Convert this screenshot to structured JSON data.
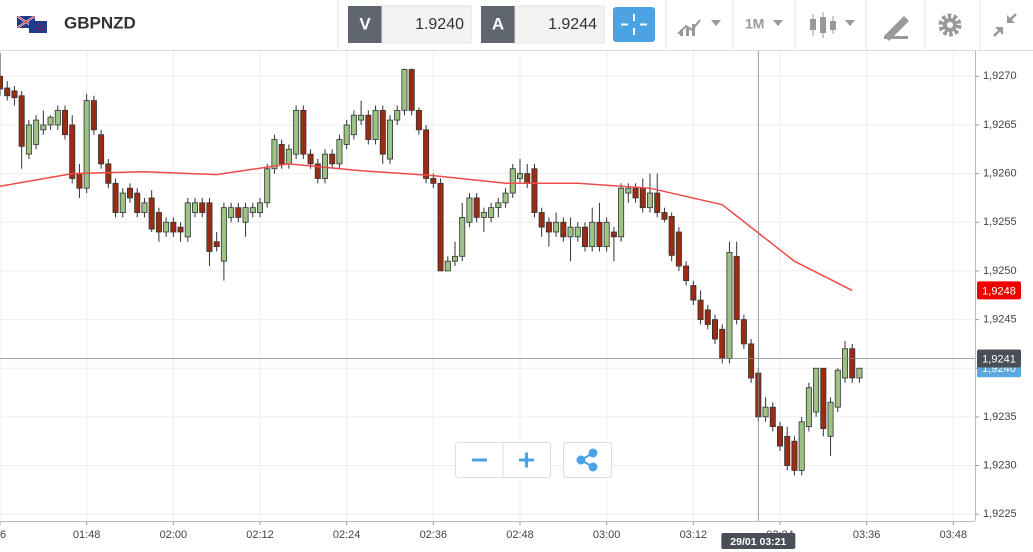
{
  "toolbar": {
    "symbol": "GBPNZD",
    "bid_label": "V",
    "bid": "1.9240",
    "ask_label": "A",
    "ask": "1.9244",
    "interval": "1M"
  },
  "chart_data": {
    "type": "candlestick",
    "x": [
      "01:36",
      "01:37",
      "01:38",
      "01:39",
      "01:40",
      "01:41",
      "01:42",
      "01:43",
      "01:44",
      "01:45",
      "01:46",
      "01:47",
      "01:48",
      "01:49",
      "01:50",
      "01:51",
      "01:52",
      "01:53",
      "01:54",
      "01:55",
      "01:56",
      "01:57",
      "01:58",
      "01:59",
      "02:00",
      "02:01",
      "02:02",
      "02:03",
      "02:04",
      "02:05",
      "02:06",
      "02:07",
      "02:08",
      "02:09",
      "02:10",
      "02:11",
      "02:12",
      "02:13",
      "02:14",
      "02:15",
      "02:16",
      "02:17",
      "02:18",
      "02:19",
      "02:20",
      "02:21",
      "02:22",
      "02:23",
      "02:24",
      "02:25",
      "02:26",
      "02:27",
      "02:28",
      "02:29",
      "02:30",
      "02:31",
      "02:32",
      "02:33",
      "02:34",
      "02:35",
      "02:36",
      "02:37",
      "02:38",
      "02:39",
      "02:40",
      "02:41",
      "02:42",
      "02:43",
      "02:44",
      "02:45",
      "02:46",
      "02:47",
      "02:48",
      "02:49",
      "02:50",
      "02:51",
      "02:52",
      "02:53",
      "02:54",
      "02:55",
      "02:56",
      "02:57",
      "02:58",
      "02:59",
      "03:00",
      "03:01",
      "03:02",
      "03:03",
      "03:04",
      "03:05",
      "03:06",
      "03:07",
      "03:08",
      "03:09",
      "03:10",
      "03:11",
      "03:12",
      "03:13",
      "03:14",
      "03:15",
      "03:16",
      "03:17",
      "03:18",
      "03:19",
      "03:20",
      "03:21",
      "03:22",
      "03:23",
      "03:24",
      "03:25",
      "03:26",
      "03:27",
      "03:28",
      "03:29",
      "03:30",
      "03:31",
      "03:32",
      "03:33",
      "03:34",
      "03:35"
    ],
    "ohlc": [
      [
        1.927,
        1.92724,
        1.9268,
        1.92687
      ],
      [
        1.92688,
        1.92695,
        1.92675,
        1.9268
      ],
      [
        1.92685,
        1.9269,
        1.9267,
        1.92678
      ],
      [
        1.9268,
        1.92685,
        1.92605,
        1.92628
      ],
      [
        1.9262,
        1.92655,
        1.92615,
        1.9265
      ],
      [
        1.9263,
        1.9266,
        1.92625,
        1.92655
      ],
      [
        1.92645,
        1.92665,
        1.9264,
        1.9265
      ],
      [
        1.9265,
        1.9266,
        1.92645,
        1.92658
      ],
      [
        1.9265,
        1.9267,
        1.92645,
        1.92665
      ],
      [
        1.92665,
        1.9267,
        1.92635,
        1.9264
      ],
      [
        1.9265,
        1.9266,
        1.9259,
        1.92595
      ],
      [
        1.926,
        1.9261,
        1.92575,
        1.92585
      ],
      [
        1.92585,
        1.92682,
        1.9258,
        1.92675
      ],
      [
        1.92675,
        1.9268,
        1.9264,
        1.92645
      ],
      [
        1.9264,
        1.92645,
        1.92605,
        1.9261
      ],
      [
        1.9261,
        1.92615,
        1.92585,
        1.9259
      ],
      [
        1.9259,
        1.92595,
        1.92555,
        1.9256
      ],
      [
        1.9256,
        1.92585,
        1.92555,
        1.9258
      ],
      [
        1.92585,
        1.9259,
        1.9257,
        1.92575
      ],
      [
        1.9258,
        1.92585,
        1.92555,
        1.9256
      ],
      [
        1.9256,
        1.92575,
        1.92555,
        1.9257
      ],
      [
        1.92575,
        1.92583,
        1.9254,
        1.92543
      ],
      [
        1.9256,
        1.92565,
        1.9253,
        1.9254
      ],
      [
        1.9254,
        1.92555,
        1.92535,
        1.9255
      ],
      [
        1.9255,
        1.92555,
        1.92535,
        1.9254
      ],
      [
        1.92545,
        1.9255,
        1.9253,
        1.9254
      ],
      [
        1.92535,
        1.92575,
        1.9253,
        1.9257
      ],
      [
        1.9256,
        1.92575,
        1.92555,
        1.9257
      ],
      [
        1.9257,
        1.92575,
        1.92555,
        1.9256
      ],
      [
        1.9257,
        1.92575,
        1.92505,
        1.9252
      ],
      [
        1.9253,
        1.9254,
        1.9252,
        1.92525
      ],
      [
        1.9251,
        1.9257,
        1.9249,
        1.92565
      ],
      [
        1.92555,
        1.9257,
        1.9255,
        1.92565
      ],
      [
        1.92565,
        1.9257,
        1.9255,
        1.92555
      ],
      [
        1.9255,
        1.9257,
        1.92535,
        1.92565
      ],
      [
        1.9256,
        1.9257,
        1.92555,
        1.92565
      ],
      [
        1.9256,
        1.92575,
        1.92555,
        1.9257
      ],
      [
        1.9257,
        1.9261,
        1.92565,
        1.92605
      ],
      [
        1.92605,
        1.9264,
        1.926,
        1.92635
      ],
      [
        1.9263,
        1.92635,
        1.92605,
        1.9261
      ],
      [
        1.9261,
        1.9263,
        1.92605,
        1.92625
      ],
      [
        1.9262,
        1.9267,
        1.92615,
        1.92665
      ],
      [
        1.92665,
        1.9267,
        1.92615,
        1.9262
      ],
      [
        1.9262,
        1.92625,
        1.92605,
        1.9261
      ],
      [
        1.9261,
        1.92615,
        1.9259,
        1.92595
      ],
      [
        1.92595,
        1.92625,
        1.9259,
        1.9262
      ],
      [
        1.9262,
        1.92625,
        1.92605,
        1.9261
      ],
      [
        1.9261,
        1.9264,
        1.92605,
        1.92635
      ],
      [
        1.9263,
        1.92655,
        1.92625,
        1.9265
      ],
      [
        1.9264,
        1.92665,
        1.92635,
        1.9266
      ],
      [
        1.92655,
        1.92675,
        1.9265,
        1.9266
      ],
      [
        1.9266,
        1.92665,
        1.9263,
        1.92635
      ],
      [
        1.92635,
        1.9267,
        1.9263,
        1.92665
      ],
      [
        1.92665,
        1.9267,
        1.9261,
        1.9262
      ],
      [
        1.92615,
        1.9266,
        1.9261,
        1.92655
      ],
      [
        1.92655,
        1.9267,
        1.9265,
        1.92665
      ],
      [
        1.92665,
        1.92708,
        1.9266,
        1.92707
      ],
      [
        1.92707,
        1.92708,
        1.9266,
        1.92665
      ],
      [
        1.92665,
        1.92668,
        1.9264,
        1.92645
      ],
      [
        1.92645,
        1.9265,
        1.9259,
        1.92595
      ],
      [
        1.92595,
        1.926,
        1.92585,
        1.9259
      ],
      [
        1.9259,
        1.92595,
        1.925,
        1.925
      ],
      [
        1.925,
        1.92515,
        1.925,
        1.9251
      ],
      [
        1.9251,
        1.9253,
        1.92505,
        1.92515
      ],
      [
        1.92515,
        1.9257,
        1.9251,
        1.92555
      ],
      [
        1.9255,
        1.9258,
        1.92545,
        1.92575
      ],
      [
        1.92575,
        1.9258,
        1.9255,
        1.92555
      ],
      [
        1.92555,
        1.92565,
        1.9254,
        1.9256
      ],
      [
        1.92555,
        1.9257,
        1.9255,
        1.92565
      ],
      [
        1.92565,
        1.92575,
        1.92555,
        1.9257
      ],
      [
        1.9257,
        1.92585,
        1.92565,
        1.9258
      ],
      [
        1.9258,
        1.9261,
        1.92575,
        1.92605
      ],
      [
        1.92595,
        1.92615,
        1.9259,
        1.926
      ],
      [
        1.926,
        1.9261,
        1.92585,
        1.9259
      ],
      [
        1.92605,
        1.9261,
        1.92555,
        1.9256
      ],
      [
        1.9256,
        1.92565,
        1.92535,
        1.92545
      ],
      [
        1.9255,
        1.92555,
        1.92525,
        1.9254
      ],
      [
        1.9254,
        1.9256,
        1.92535,
        1.9255
      ],
      [
        1.9255,
        1.92555,
        1.9253,
        1.92535
      ],
      [
        1.92535,
        1.92555,
        1.9251,
        1.92545
      ],
      [
        1.92535,
        1.9255,
        1.9253,
        1.92545
      ],
      [
        1.92545,
        1.9255,
        1.9252,
        1.92525
      ],
      [
        1.92525,
        1.92565,
        1.9252,
        1.9255
      ],
      [
        1.9255,
        1.9257,
        1.9252,
        1.92525
      ],
      [
        1.92525,
        1.92555,
        1.9252,
        1.9255
      ],
      [
        1.9254,
        1.92545,
        1.9251,
        1.92535
      ],
      [
        1.92535,
        1.9259,
        1.9253,
        1.92585
      ],
      [
        1.9258,
        1.9259,
        1.9257,
        1.92585
      ],
      [
        1.92585,
        1.9259,
        1.9257,
        1.92575
      ],
      [
        1.92585,
        1.92595,
        1.9256,
        1.92565
      ],
      [
        1.92565,
        1.926,
        1.9256,
        1.9258
      ],
      [
        1.9258,
        1.926,
        1.92555,
        1.9256
      ],
      [
        1.9256,
        1.92565,
        1.9255,
        1.92553
      ],
      [
        1.92556,
        1.9256,
        1.9251,
        1.92516
      ],
      [
        1.9254,
        1.92545,
        1.925,
        1.92505
      ],
      [
        1.92505,
        1.9251,
        1.92485,
        1.9249
      ],
      [
        1.92485,
        1.9249,
        1.92465,
        1.9247
      ],
      [
        1.9247,
        1.9248,
        1.92445,
        1.9245
      ],
      [
        1.9246,
        1.92465,
        1.9244,
        1.92445
      ],
      [
        1.9245,
        1.92455,
        1.92425,
        1.9243
      ],
      [
        1.9244,
        1.92445,
        1.92405,
        1.9241
      ],
      [
        1.9241,
        1.9253,
        1.92405,
        1.92519
      ],
      [
        1.92515,
        1.9253,
        1.92445,
        1.9245
      ],
      [
        1.9245,
        1.92455,
        1.9242,
        1.92425
      ],
      [
        1.92425,
        1.9243,
        1.92385,
        1.9239
      ],
      [
        1.92395,
        1.924,
        1.92345,
        1.9235
      ],
      [
        1.9235,
        1.9237,
        1.92345,
        1.9236
      ],
      [
        1.9236,
        1.92365,
        1.92335,
        1.9234
      ],
      [
        1.9234,
        1.92345,
        1.92315,
        1.9232
      ],
      [
        1.9233,
        1.9234,
        1.92295,
        1.923
      ],
      [
        1.92325,
        1.9233,
        1.9229,
        1.92295
      ],
      [
        1.92295,
        1.9235,
        1.9229,
        1.92345
      ],
      [
        1.9234,
        1.92385,
        1.92335,
        1.9238
      ],
      [
        1.92355,
        1.924,
        1.9235,
        1.924
      ],
      [
        1.924,
        1.924,
        1.9233,
        1.92338
      ],
      [
        1.9233,
        1.9237,
        1.9231,
        1.92365
      ],
      [
        1.9236,
        1.924,
        1.92355,
        1.92398
      ],
      [
        1.9239,
        1.92428,
        1.92385,
        1.9242
      ],
      [
        1.9242,
        1.92425,
        1.92385,
        1.9239
      ],
      [
        1.9239,
        1.924,
        1.92385,
        1.924
      ]
    ],
    "up_color": "#9cc284",
    "down_color": "#9b2c13",
    "moving_average": {
      "color": "#ef4b4b",
      "x": [
        "01:36",
        "01:46",
        "01:56",
        "02:06",
        "02:16",
        "02:26",
        "02:36",
        "02:46",
        "02:56",
        "03:06",
        "03:16",
        "03:26",
        "03:34"
      ],
      "values": [
        1.92587,
        1.926,
        1.92602,
        1.92599,
        1.9261,
        1.92603,
        1.92598,
        1.9259,
        1.9259,
        1.92585,
        1.92568,
        1.9251,
        1.9248
      ]
    },
    "xlim": [
      "01:36",
      "03:51"
    ],
    "xticks": [
      {
        "value": "01:36",
        "label": "6"
      },
      "01:48",
      "02:00",
      "02:12",
      "02:24",
      "02:36",
      "02:48",
      "03:00",
      "03:12",
      "03:24",
      "03:36",
      "03:48"
    ],
    "ylim": [
      1.92243,
      1.92726
    ],
    "yticks": [
      {
        "value": 1.927,
        "label": "1,9270"
      },
      {
        "value": 1.9265,
        "label": "1,9265"
      },
      {
        "value": 1.926,
        "label": "1,9260"
      },
      {
        "value": 1.9255,
        "label": "1,9255"
      },
      {
        "value": 1.925,
        "label": "1,9250"
      },
      {
        "value": 1.9245,
        "label": "1,9245"
      },
      {
        "value": 1.924,
        "label": "1,9240"
      },
      {
        "value": 1.9235,
        "label": "1,9235"
      },
      {
        "value": 1.923,
        "label": "1,9230"
      },
      {
        "value": 1.9225,
        "label": "1,9225"
      }
    ],
    "grid": true,
    "ma_tag": {
      "value": 1.9248,
      "label": "1,9248"
    },
    "bid_tag": {
      "value": 1.924,
      "label": "1,9240"
    },
    "crosshair": {
      "x_label": "29/01 03:21",
      "y_label": {
        "value": 1.9241,
        "label": "1,9241"
      }
    }
  }
}
